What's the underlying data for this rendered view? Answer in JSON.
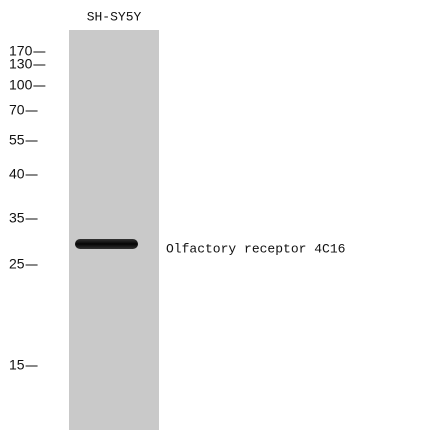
{
  "lane_label": "SH-SY5Y",
  "markers": [
    "170",
    "130",
    "100",
    "70",
    "55",
    "40",
    "35",
    "25",
    "15"
  ],
  "band_label": "Olfactory receptor 4C16"
}
